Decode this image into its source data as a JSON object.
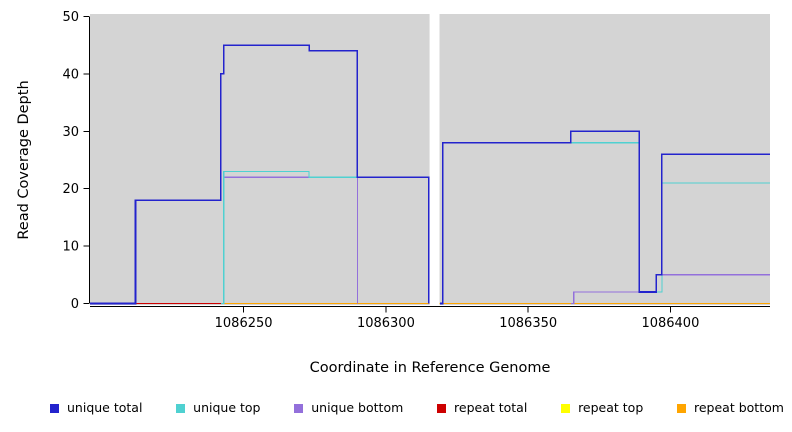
{
  "chart_data": {
    "type": "line",
    "subtype": "step-coverage",
    "title": "",
    "xlabel": "Coordinate in Reference Genome",
    "ylabel": "Read Coverage Depth",
    "xlim": [
      1086196,
      1086435
    ],
    "ylim": [
      0,
      50
    ],
    "xticks": [
      1086250,
      1086300,
      1086350,
      1086400
    ],
    "yticks": [
      0,
      10,
      20,
      30,
      40,
      50
    ],
    "panel_background": "#d4d4d4",
    "panel_gap_x": [
      1086315,
      1086319
    ],
    "axis_color": "#000000",
    "series": [
      {
        "name": "repeat total",
        "color": "#cd0000",
        "lw": 1.2,
        "points": [
          [
            1086212,
            0
          ],
          [
            1086435,
            0
          ]
        ]
      },
      {
        "name": "repeat top",
        "color": "#ffff00",
        "lw": 1.2,
        "points": [
          [
            1086242,
            0
          ],
          [
            1086435,
            0
          ]
        ]
      },
      {
        "name": "repeat bottom",
        "color": "#ffa500",
        "lw": 1.4,
        "points": [
          [
            1086242,
            0
          ],
          [
            1086435,
            0
          ]
        ]
      },
      {
        "name": "unique bottom",
        "color": "#9370db",
        "lw": 1.2,
        "points": [
          [
            1086242,
            0
          ],
          [
            1086243,
            22
          ],
          [
            1086290,
            0
          ],
          null,
          [
            1086365,
            0
          ],
          [
            1086366,
            2
          ],
          [
            1086395,
            5
          ],
          [
            1086435,
            5
          ]
        ]
      },
      {
        "name": "unique top",
        "color": "#4fd1d1",
        "lw": 1.2,
        "points": [
          [
            1086242,
            0
          ],
          [
            1086243,
            23
          ],
          [
            1086273,
            22
          ],
          [
            1086315,
            0
          ],
          null,
          [
            1086319,
            0
          ],
          [
            1086320,
            28
          ],
          [
            1086389,
            2
          ],
          [
            1086397,
            21
          ],
          [
            1086435,
            21
          ]
        ]
      },
      {
        "name": "unique total",
        "color": "#2323cd",
        "lw": 1.6,
        "points": [
          [
            1086196,
            0
          ],
          [
            1086212,
            18
          ],
          [
            1086242,
            40
          ],
          [
            1086243,
            45
          ],
          [
            1086273,
            44
          ],
          [
            1086290,
            22
          ],
          [
            1086315,
            0
          ],
          null,
          [
            1086319,
            0
          ],
          [
            1086320,
            28
          ],
          [
            1086365,
            30
          ],
          [
            1086389,
            2
          ],
          [
            1086395,
            5
          ],
          [
            1086397,
            26
          ],
          [
            1086435,
            26
          ]
        ]
      }
    ],
    "legend": [
      {
        "label": "unique total",
        "color": "#2323cd"
      },
      {
        "label": "unique top",
        "color": "#4fd1d1"
      },
      {
        "label": "unique bottom",
        "color": "#9370db"
      },
      {
        "label": "repeat total",
        "color": "#cd0000"
      },
      {
        "label": "repeat top",
        "color": "#ffff00"
      },
      {
        "label": "repeat bottom",
        "color": "#ffa500"
      }
    ]
  }
}
